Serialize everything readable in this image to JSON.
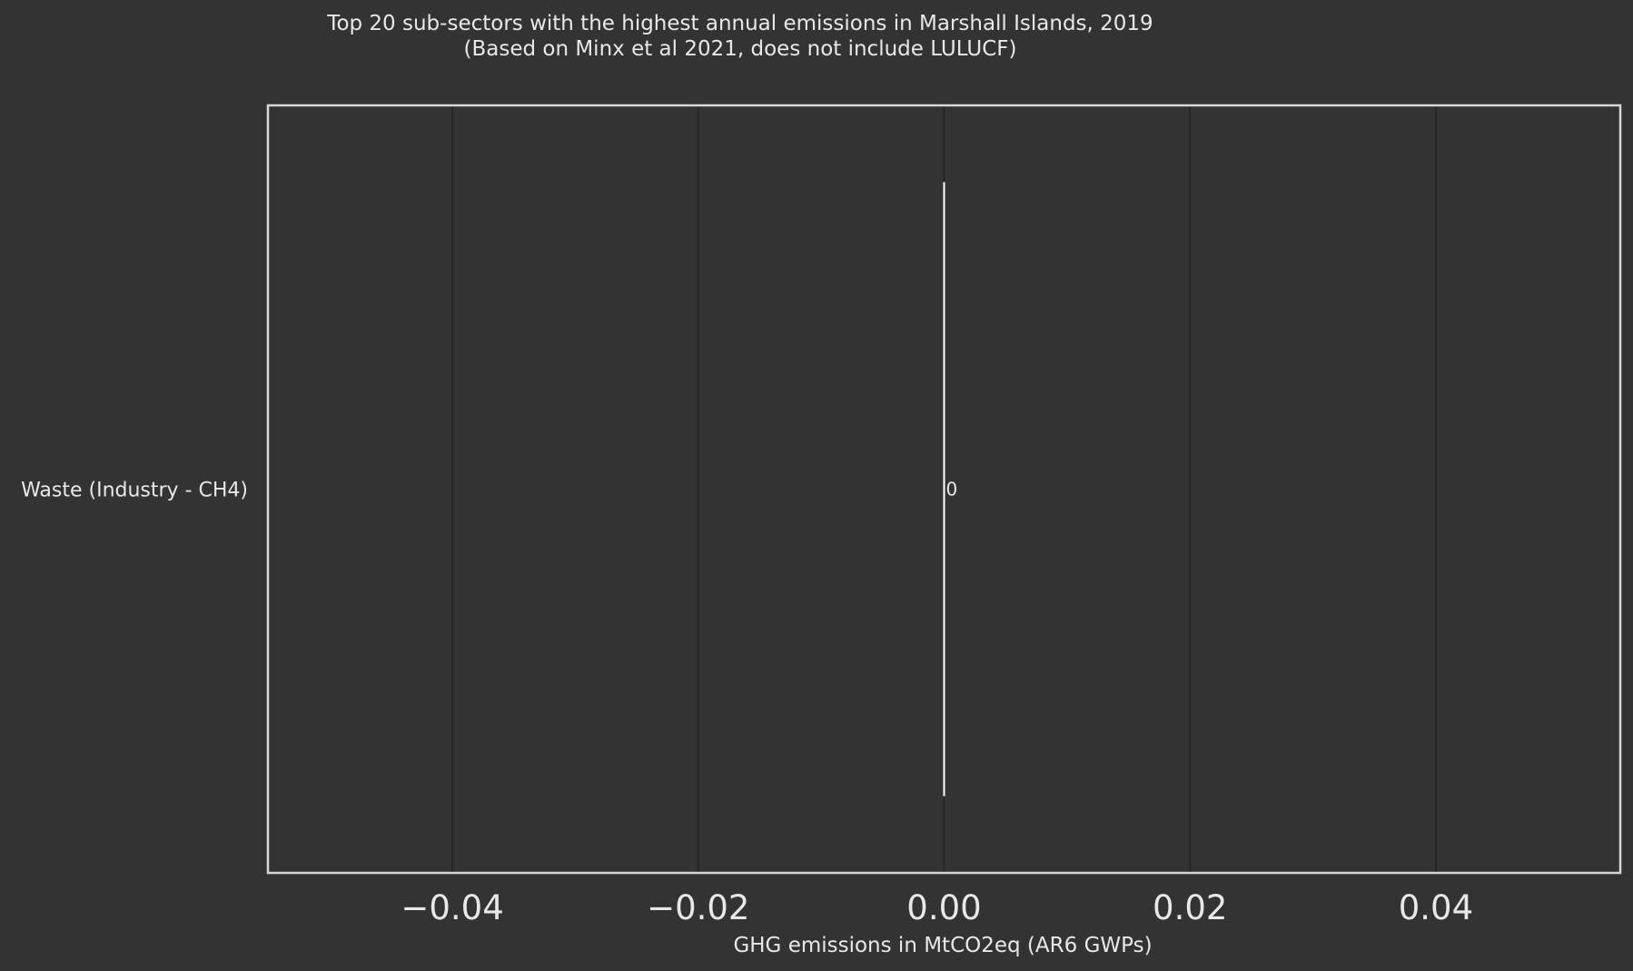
{
  "colors": {
    "background": "#333333",
    "plot_background": "#333333",
    "frame": "#d8d8d8",
    "grid": "#262626",
    "bar": "#ffffff",
    "text": "#e8e8e8"
  },
  "chart_data": {
    "type": "bar",
    "orientation": "horizontal",
    "title": "Top 20 sub-sectors with the highest annual emissions in Marshall Islands, 2019",
    "subtitle": "(Based on Minx et al 2021, does not include LULUCF)",
    "xlabel": "GHG emissions in MtCO2eq (AR6 GWPs)",
    "ylabel": "",
    "xlim": [
      -0.055,
      0.055
    ],
    "x_ticks": [
      -0.04,
      -0.02,
      0.0,
      0.02,
      0.04
    ],
    "x_tick_labels": [
      "−0.04",
      "−0.02",
      "0.00",
      "0.02",
      "0.04"
    ],
    "grid": true,
    "categories": [
      "Waste (Industry - CH4)"
    ],
    "values": [
      0
    ],
    "data_labels": [
      "0"
    ]
  }
}
